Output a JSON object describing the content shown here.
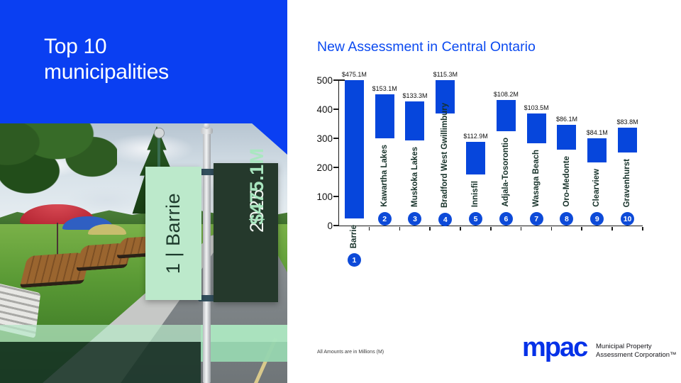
{
  "slide": {
    "title_line1": "Top 10",
    "title_line2": "municipalities"
  },
  "photo": {
    "banner_rank_name": "1 | Barrie",
    "banner_year": "2025",
    "banner_value": "$475.1M"
  },
  "chart_data": {
    "type": "bar",
    "title": "New Assessment in Central Ontario",
    "note": "All Amounts are in Millions (M)",
    "categories": [
      "Barrie",
      "Kawartha Lakes",
      "Muskoka Lakes",
      "Bradford West Gwillimbury",
      "Innisfil",
      "Adjala-Tosorontio",
      "Wasaga Beach",
      "Oro-Medonte",
      "Clearview",
      "Gravenhurst"
    ],
    "values": [
      475.1,
      153.1,
      133.3,
      115.3,
      112.9,
      108.2,
      103.5,
      86.1,
      84.1,
      83.8
    ],
    "labels": [
      "$475.1M",
      "$153.1M",
      "$133.3M",
      "$115.3M",
      "$112.9M",
      "$108.2M",
      "$103.5M",
      "$86.1M",
      "$84.1M",
      "$83.8M"
    ],
    "ranks": [
      1,
      2,
      3,
      4,
      5,
      6,
      7,
      8,
      9,
      10
    ],
    "xlabel": "",
    "ylabel": "",
    "ylim": [
      0,
      500
    ],
    "y_ticks": [
      0,
      100,
      200,
      300,
      400,
      500
    ],
    "grid": false,
    "legend": false,
    "bar_color": "#0646dc"
  },
  "logo": {
    "brand": "mpac",
    "tagline_line1": "Municipal Property",
    "tagline_line2": "Assessment Corporation™"
  },
  "colors": {
    "brand_blue": "#0a3ff2",
    "bar_blue": "#0646dc",
    "rank_circle_blue": "#0d4ad8",
    "title_blue": "#0b4af0",
    "logo_blue": "#0531e8",
    "banner_mint": "#bce9cb",
    "banner_dark_green": "#25392c",
    "label_dark_green": "#17322a"
  }
}
